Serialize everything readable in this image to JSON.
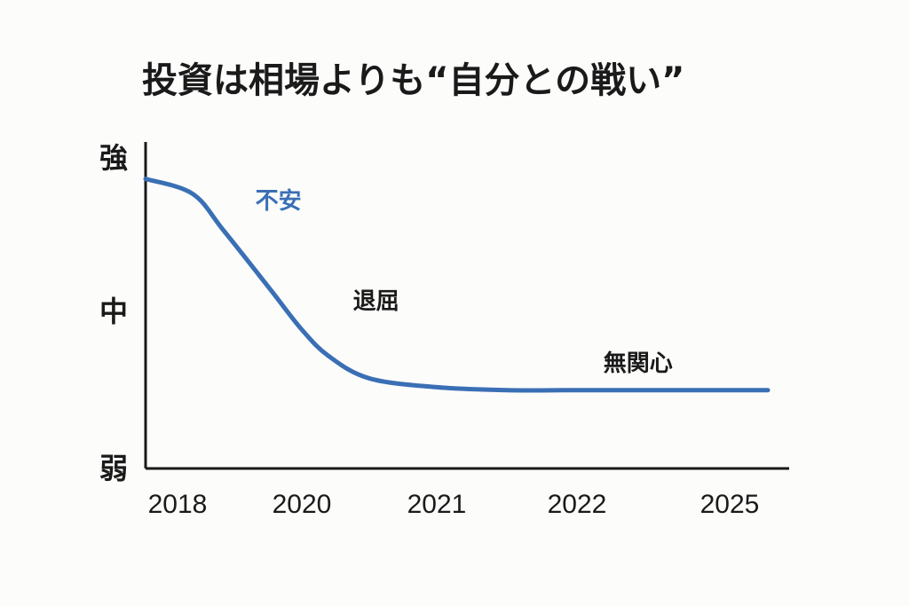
{
  "chart_data": {
    "type": "line",
    "title": "投資は相場よりも“自分との戦い”",
    "xlabel": "",
    "ylabel": "",
    "x_categories": [
      "2018",
      "2020",
      "2021",
      "2022",
      "2025"
    ],
    "y_levels": [
      "弱",
      "中",
      "強"
    ],
    "ylim": [
      0,
      2
    ],
    "grid": false,
    "series": [
      {
        "color": "#3a6fb5",
        "x": [
          0,
          0.3,
          0.5,
          0.8,
          1.0,
          1.2,
          1.5,
          2.0,
          2.5,
          3.0,
          3.5,
          4.25
        ],
        "y": [
          1.9,
          1.8,
          1.55,
          1.15,
          0.88,
          0.7,
          0.55,
          0.49,
          0.47,
          0.47,
          0.47,
          0.47
        ]
      }
    ],
    "annotations": [
      {
        "text": "不安",
        "x": 0.85,
        "y": 1.7,
        "color": "#3a6fb5"
      },
      {
        "text": "退屈",
        "x": 1.55,
        "y": 1.02,
        "color": "#1a1a1a"
      },
      {
        "text": "無関心",
        "x": 3.4,
        "y": 0.6,
        "color": "#1a1a1a"
      }
    ]
  }
}
